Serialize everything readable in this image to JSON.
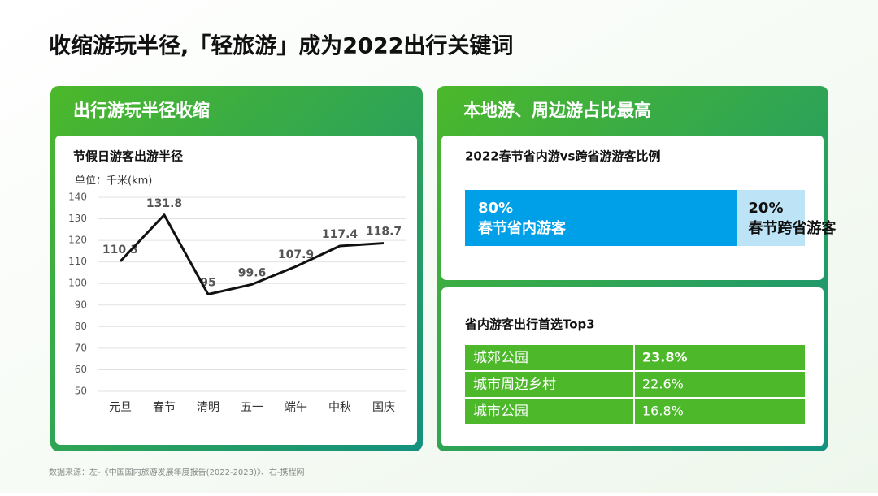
{
  "title": "收缩游玩半径,「轻旅游」成为2022出行关键词",
  "left_heading": "出行游玩半径收缩",
  "right_heading": "本地游、周边游占比最高",
  "chart_data": {
    "type": "line",
    "title": "节假日游客出游半径",
    "subtitle": "单位：千米(km)",
    "categories": [
      "元旦",
      "春节",
      "清明",
      "五一",
      "端午",
      "中秋",
      "国庆"
    ],
    "values": [
      110.3,
      131.8,
      95,
      99.6,
      107.9,
      117.4,
      118.7
    ],
    "color": "#111111",
    "ylim": [
      50,
      140
    ],
    "yticks": [
      50,
      60,
      70,
      80,
      90,
      100,
      110,
      120,
      130,
      140
    ],
    "grid": true
  },
  "share": {
    "title": "2022春节省内游vs跨省游游客比例",
    "type": "stacked-bar",
    "categories": [
      "春节省内游客",
      "春节跨省游客"
    ],
    "values": [
      80,
      20
    ],
    "value_labels": [
      "80%",
      "20%"
    ],
    "colors": [
      "#00a0e9",
      "#bde3f7"
    ]
  },
  "top3": {
    "title": "省内游客出行首选Top3",
    "rows": [
      [
        "城郊公园",
        "23.8%"
      ],
      [
        "城市周边乡村",
        "22.6%"
      ],
      [
        "城市公园",
        "16.8%"
      ]
    ]
  },
  "source": "数据来源：左-《中国国内旅游发展年度报告(2022-2023)》、右-携程网"
}
